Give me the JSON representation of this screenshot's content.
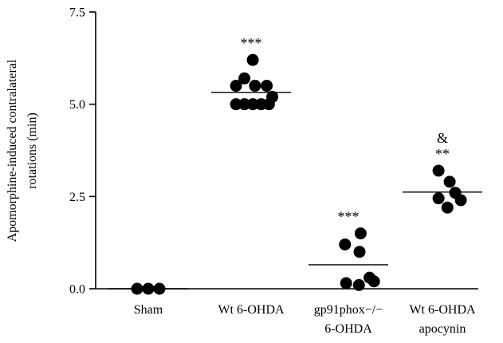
{
  "chart_data": {
    "type": "scatter",
    "ylabel_lines": [
      "Apomorphine-induced contralateral",
      "rotations (min)"
    ],
    "ylim": [
      0,
      7.5
    ],
    "yticks": [
      "0.0",
      "2.5",
      "5.0",
      "7.5"
    ],
    "ytick_values": [
      0,
      2.5,
      5.0,
      7.5
    ],
    "categories": [
      {
        "label_lines": [
          "Sham"
        ]
      },
      {
        "label_lines": [
          "Wt 6-OHDA"
        ]
      },
      {
        "label_lines": [
          "gp91phox−/−",
          "6-OHDA"
        ]
      },
      {
        "label_lines": [
          "Wt 6-OHDA",
          "apocynin"
        ]
      }
    ],
    "groups": [
      {
        "category": "Sham",
        "mean": 0.0,
        "significance": [],
        "points": [
          {
            "offset": -1,
            "y": 0.0
          },
          {
            "offset": 0,
            "y": 0.0
          },
          {
            "offset": 1,
            "y": 0.0
          }
        ]
      },
      {
        "category": "Wt 6-OHDA",
        "mean": 5.32,
        "significance": [
          "***"
        ],
        "points": [
          {
            "offset": 0.15,
            "y": 6.2
          },
          {
            "offset": -0.6,
            "y": 5.7
          },
          {
            "offset": -1.35,
            "y": 5.5
          },
          {
            "offset": 0.35,
            "y": 5.5
          },
          {
            "offset": 1.4,
            "y": 5.5
          },
          {
            "offset": 1.9,
            "y": 5.2
          },
          {
            "offset": -1.35,
            "y": 5.0
          },
          {
            "offset": -0.6,
            "y": 5.0
          },
          {
            "offset": 0.15,
            "y": 5.0
          },
          {
            "offset": 0.9,
            "y": 5.0
          },
          {
            "offset": 1.6,
            "y": 5.0
          }
        ]
      },
      {
        "category": "gp91phox−/− 6-OHDA",
        "mean": 0.65,
        "significance": [
          "***"
        ],
        "points": [
          {
            "offset": 1.1,
            "y": 1.5
          },
          {
            "offset": -0.3,
            "y": 1.2
          },
          {
            "offset": 1.0,
            "y": 1.0
          },
          {
            "offset": 1.9,
            "y": 0.3
          },
          {
            "offset": 2.3,
            "y": 0.2
          },
          {
            "offset": -0.2,
            "y": 0.15
          },
          {
            "offset": 0.95,
            "y": 0.1
          }
        ]
      },
      {
        "category": "Wt 6-OHDA apocynin",
        "mean": 2.62,
        "significance": [
          "&",
          "**"
        ],
        "points": [
          {
            "offset": -0.35,
            "y": 3.2
          },
          {
            "offset": 0.65,
            "y": 2.9
          },
          {
            "offset": 1.15,
            "y": 2.6
          },
          {
            "offset": -0.35,
            "y": 2.45
          },
          {
            "offset": 1.65,
            "y": 2.4
          },
          {
            "offset": 0.45,
            "y": 2.2
          }
        ]
      }
    ]
  }
}
